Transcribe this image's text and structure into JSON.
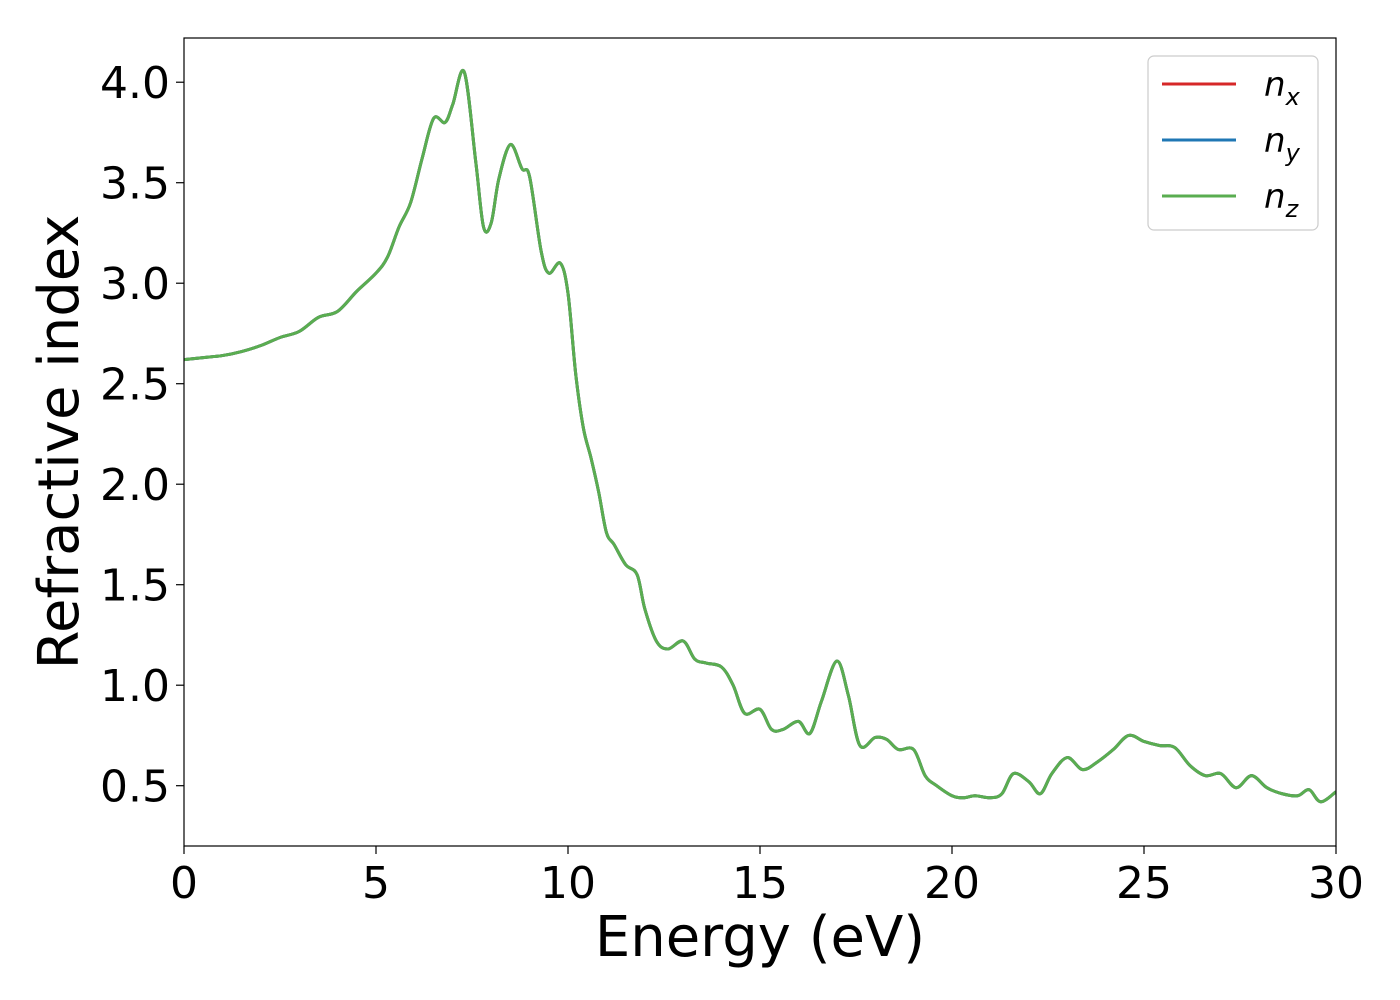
{
  "chart_data": {
    "type": "line",
    "title": "",
    "xlabel": "Energy (eV)",
    "ylabel": "Refractive index",
    "xlim": [
      0,
      30
    ],
    "ylim": [
      0.2,
      4.22
    ],
    "xticks": [
      0,
      5,
      10,
      15,
      20,
      25,
      30
    ],
    "xtick_labels": [
      "0",
      "5",
      "10",
      "15",
      "20",
      "25",
      "30"
    ],
    "yticks": [
      0.5,
      1.0,
      1.5,
      2.0,
      2.5,
      3.0,
      3.5,
      4.0
    ],
    "ytick_labels": [
      "0.5",
      "1.0",
      "1.5",
      "2.0",
      "2.5",
      "3.0",
      "3.5",
      "4.0"
    ],
    "grid": false,
    "legend_position": "top-right",
    "x": [
      0,
      0.5,
      1,
      1.5,
      2,
      2.5,
      3,
      3.5,
      4,
      4.5,
      5,
      5.3,
      5.6,
      5.9,
      6.2,
      6.5,
      6.8,
      7.0,
      7.3,
      7.6,
      7.8,
      8.0,
      8.2,
      8.5,
      8.8,
      9.0,
      9.3,
      9.5,
      9.8,
      10.0,
      10.2,
      10.4,
      10.6,
      10.8,
      11.0,
      11.2,
      11.5,
      11.8,
      12.0,
      12.3,
      12.6,
      13.0,
      13.3,
      13.6,
      14.0,
      14.3,
      14.6,
      15.0,
      15.3,
      15.6,
      16.0,
      16.3,
      16.6,
      17.0,
      17.3,
      17.6,
      18.0,
      18.3,
      18.6,
      19.0,
      19.3,
      19.6,
      20.0,
      20.3,
      20.6,
      21.0,
      21.3,
      21.6,
      22.0,
      22.3,
      22.6,
      23.0,
      23.4,
      23.8,
      24.2,
      24.6,
      25.0,
      25.4,
      25.8,
      26.2,
      26.6,
      27.0,
      27.4,
      27.8,
      28.2,
      28.6,
      29.0,
      29.3,
      29.6,
      30.0
    ],
    "series": [
      {
        "name": "n_x",
        "label_base": "n",
        "label_sub": "x",
        "color": "#d62728",
        "values": [
          2.62,
          2.63,
          2.64,
          2.66,
          2.69,
          2.73,
          2.76,
          2.83,
          2.86,
          2.96,
          3.05,
          3.13,
          3.28,
          3.4,
          3.62,
          3.82,
          3.8,
          3.89,
          4.05,
          3.6,
          3.28,
          3.3,
          3.52,
          3.69,
          3.57,
          3.53,
          3.16,
          3.05,
          3.1,
          2.95,
          2.55,
          2.28,
          2.13,
          1.96,
          1.76,
          1.7,
          1.6,
          1.55,
          1.38,
          1.22,
          1.18,
          1.22,
          1.13,
          1.11,
          1.09,
          1.0,
          0.86,
          0.88,
          0.78,
          0.78,
          0.82,
          0.76,
          0.92,
          1.12,
          0.95,
          0.7,
          0.74,
          0.73,
          0.68,
          0.68,
          0.55,
          0.5,
          0.45,
          0.44,
          0.45,
          0.44,
          0.46,
          0.56,
          0.52,
          0.46,
          0.56,
          0.64,
          0.58,
          0.62,
          0.68,
          0.75,
          0.72,
          0.7,
          0.69,
          0.6,
          0.55,
          0.56,
          0.49,
          0.55,
          0.49,
          0.46,
          0.45,
          0.48,
          0.42,
          0.47
        ]
      },
      {
        "name": "n_y",
        "label_base": "n",
        "label_sub": "y",
        "color": "#1f77b4",
        "values": [
          2.62,
          2.63,
          2.64,
          2.66,
          2.69,
          2.73,
          2.76,
          2.83,
          2.86,
          2.96,
          3.05,
          3.13,
          3.28,
          3.4,
          3.62,
          3.82,
          3.8,
          3.89,
          4.05,
          3.6,
          3.28,
          3.3,
          3.52,
          3.69,
          3.57,
          3.53,
          3.16,
          3.05,
          3.1,
          2.95,
          2.55,
          2.28,
          2.13,
          1.96,
          1.76,
          1.7,
          1.6,
          1.55,
          1.38,
          1.22,
          1.18,
          1.22,
          1.13,
          1.11,
          1.09,
          1.0,
          0.86,
          0.88,
          0.78,
          0.78,
          0.82,
          0.76,
          0.92,
          1.12,
          0.95,
          0.7,
          0.74,
          0.73,
          0.68,
          0.68,
          0.55,
          0.5,
          0.45,
          0.44,
          0.45,
          0.44,
          0.46,
          0.56,
          0.52,
          0.46,
          0.56,
          0.64,
          0.58,
          0.62,
          0.68,
          0.75,
          0.72,
          0.7,
          0.69,
          0.6,
          0.55,
          0.56,
          0.49,
          0.55,
          0.49,
          0.46,
          0.45,
          0.48,
          0.42,
          0.47
        ]
      },
      {
        "name": "n_z",
        "label_base": "n",
        "label_sub": "z",
        "color": "#5aad50",
        "values": [
          2.62,
          2.63,
          2.64,
          2.66,
          2.69,
          2.73,
          2.76,
          2.83,
          2.86,
          2.96,
          3.05,
          3.13,
          3.28,
          3.4,
          3.62,
          3.82,
          3.8,
          3.89,
          4.05,
          3.6,
          3.28,
          3.3,
          3.52,
          3.69,
          3.57,
          3.53,
          3.16,
          3.05,
          3.1,
          2.95,
          2.55,
          2.28,
          2.13,
          1.96,
          1.76,
          1.7,
          1.6,
          1.55,
          1.38,
          1.22,
          1.18,
          1.22,
          1.13,
          1.11,
          1.09,
          1.0,
          0.86,
          0.88,
          0.78,
          0.78,
          0.82,
          0.76,
          0.92,
          1.12,
          0.95,
          0.7,
          0.74,
          0.73,
          0.68,
          0.68,
          0.55,
          0.5,
          0.45,
          0.44,
          0.45,
          0.44,
          0.46,
          0.56,
          0.52,
          0.46,
          0.56,
          0.64,
          0.58,
          0.62,
          0.68,
          0.75,
          0.72,
          0.7,
          0.69,
          0.6,
          0.55,
          0.56,
          0.49,
          0.55,
          0.49,
          0.46,
          0.45,
          0.48,
          0.42,
          0.47
        ]
      }
    ]
  }
}
